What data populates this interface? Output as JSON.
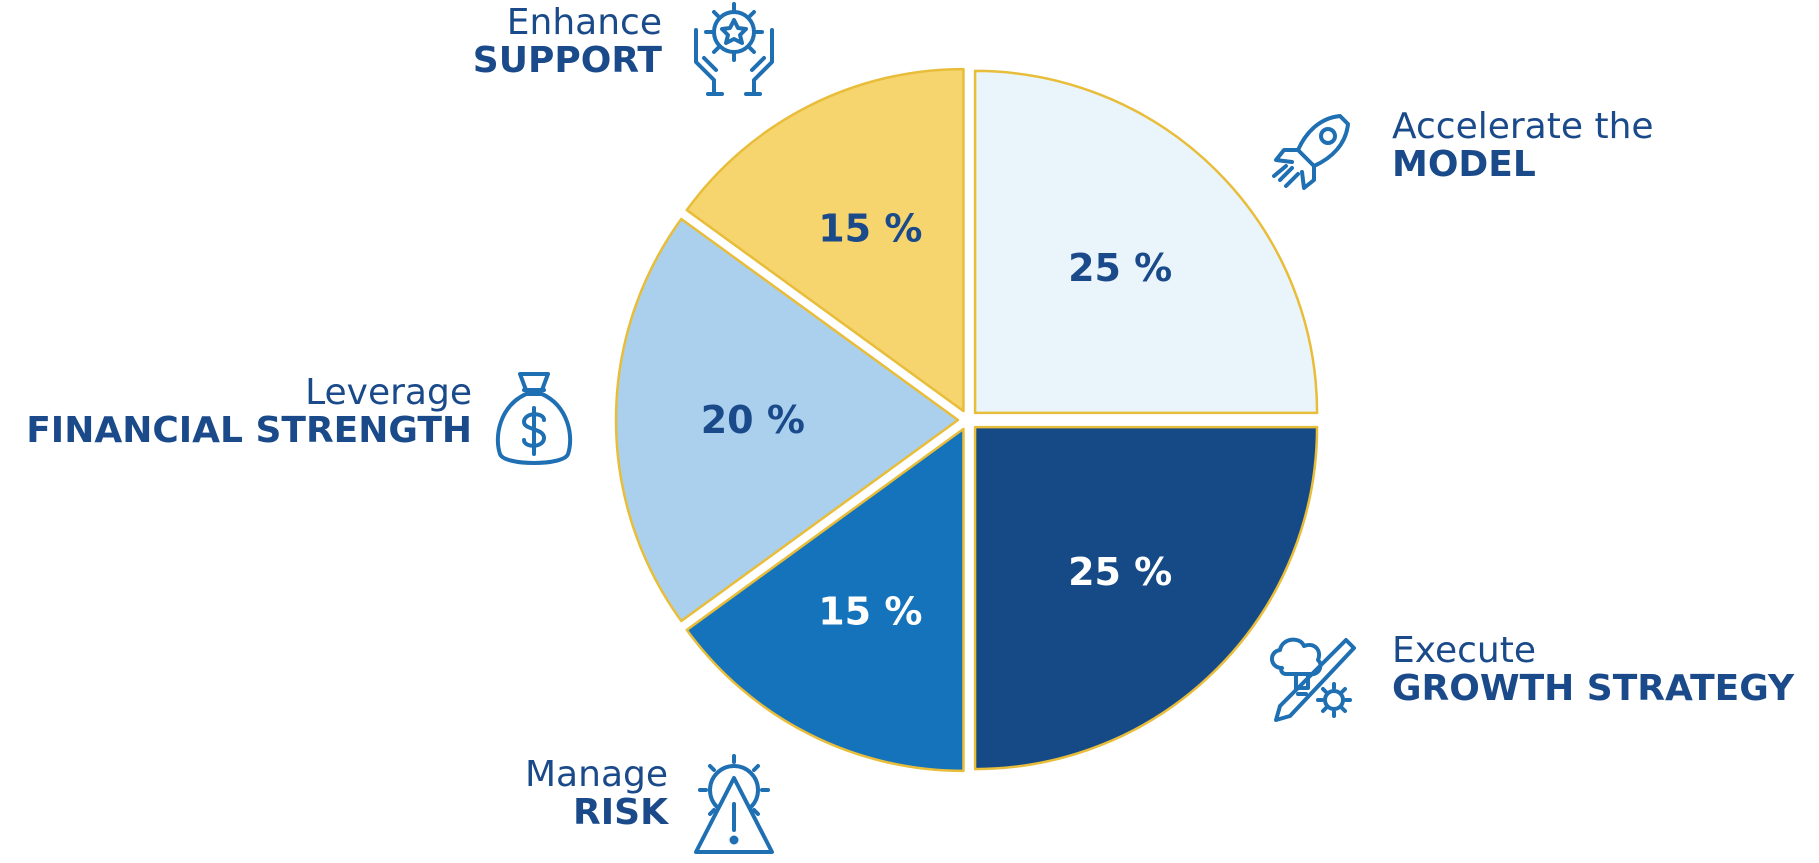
{
  "chart_data": {
    "type": "pie",
    "slices": [
      {
        "line1": "Accelerate the",
        "line2": "MODEL",
        "value": 25,
        "label": "25 %",
        "fill": "#eaf4fb",
        "text_color": "#1a4a8a",
        "icon": "rocket-icon"
      },
      {
        "line1": "Execute",
        "line2": "GROWTH STRATEGY",
        "value": 25,
        "label": "25 %",
        "fill": "#154a86",
        "text_color": "#ffffff",
        "icon": "idea-gear-icon"
      },
      {
        "line1": "Manage",
        "line2": "RISK",
        "value": 15,
        "label": "15 %",
        "fill": "#1473ba",
        "text_color": "#ffffff",
        "icon": "warning-gear-icon"
      },
      {
        "line1": "Leverage",
        "line2": "FINANCIAL STRENGTH",
        "value": 20,
        "label": "20 %",
        "fill": "#aad0ee",
        "text_color": "#1a4a8a",
        "icon": "money-bag-icon"
      },
      {
        "line1": "Enhance",
        "line2": "SUPPORT",
        "value": 15,
        "label": "15 %",
        "fill": "#f6d56e",
        "text_color": "#1a4a8a",
        "icon": "hands-star-icon"
      }
    ],
    "legend": "none",
    "stroke_color": "#e8bd3a"
  }
}
